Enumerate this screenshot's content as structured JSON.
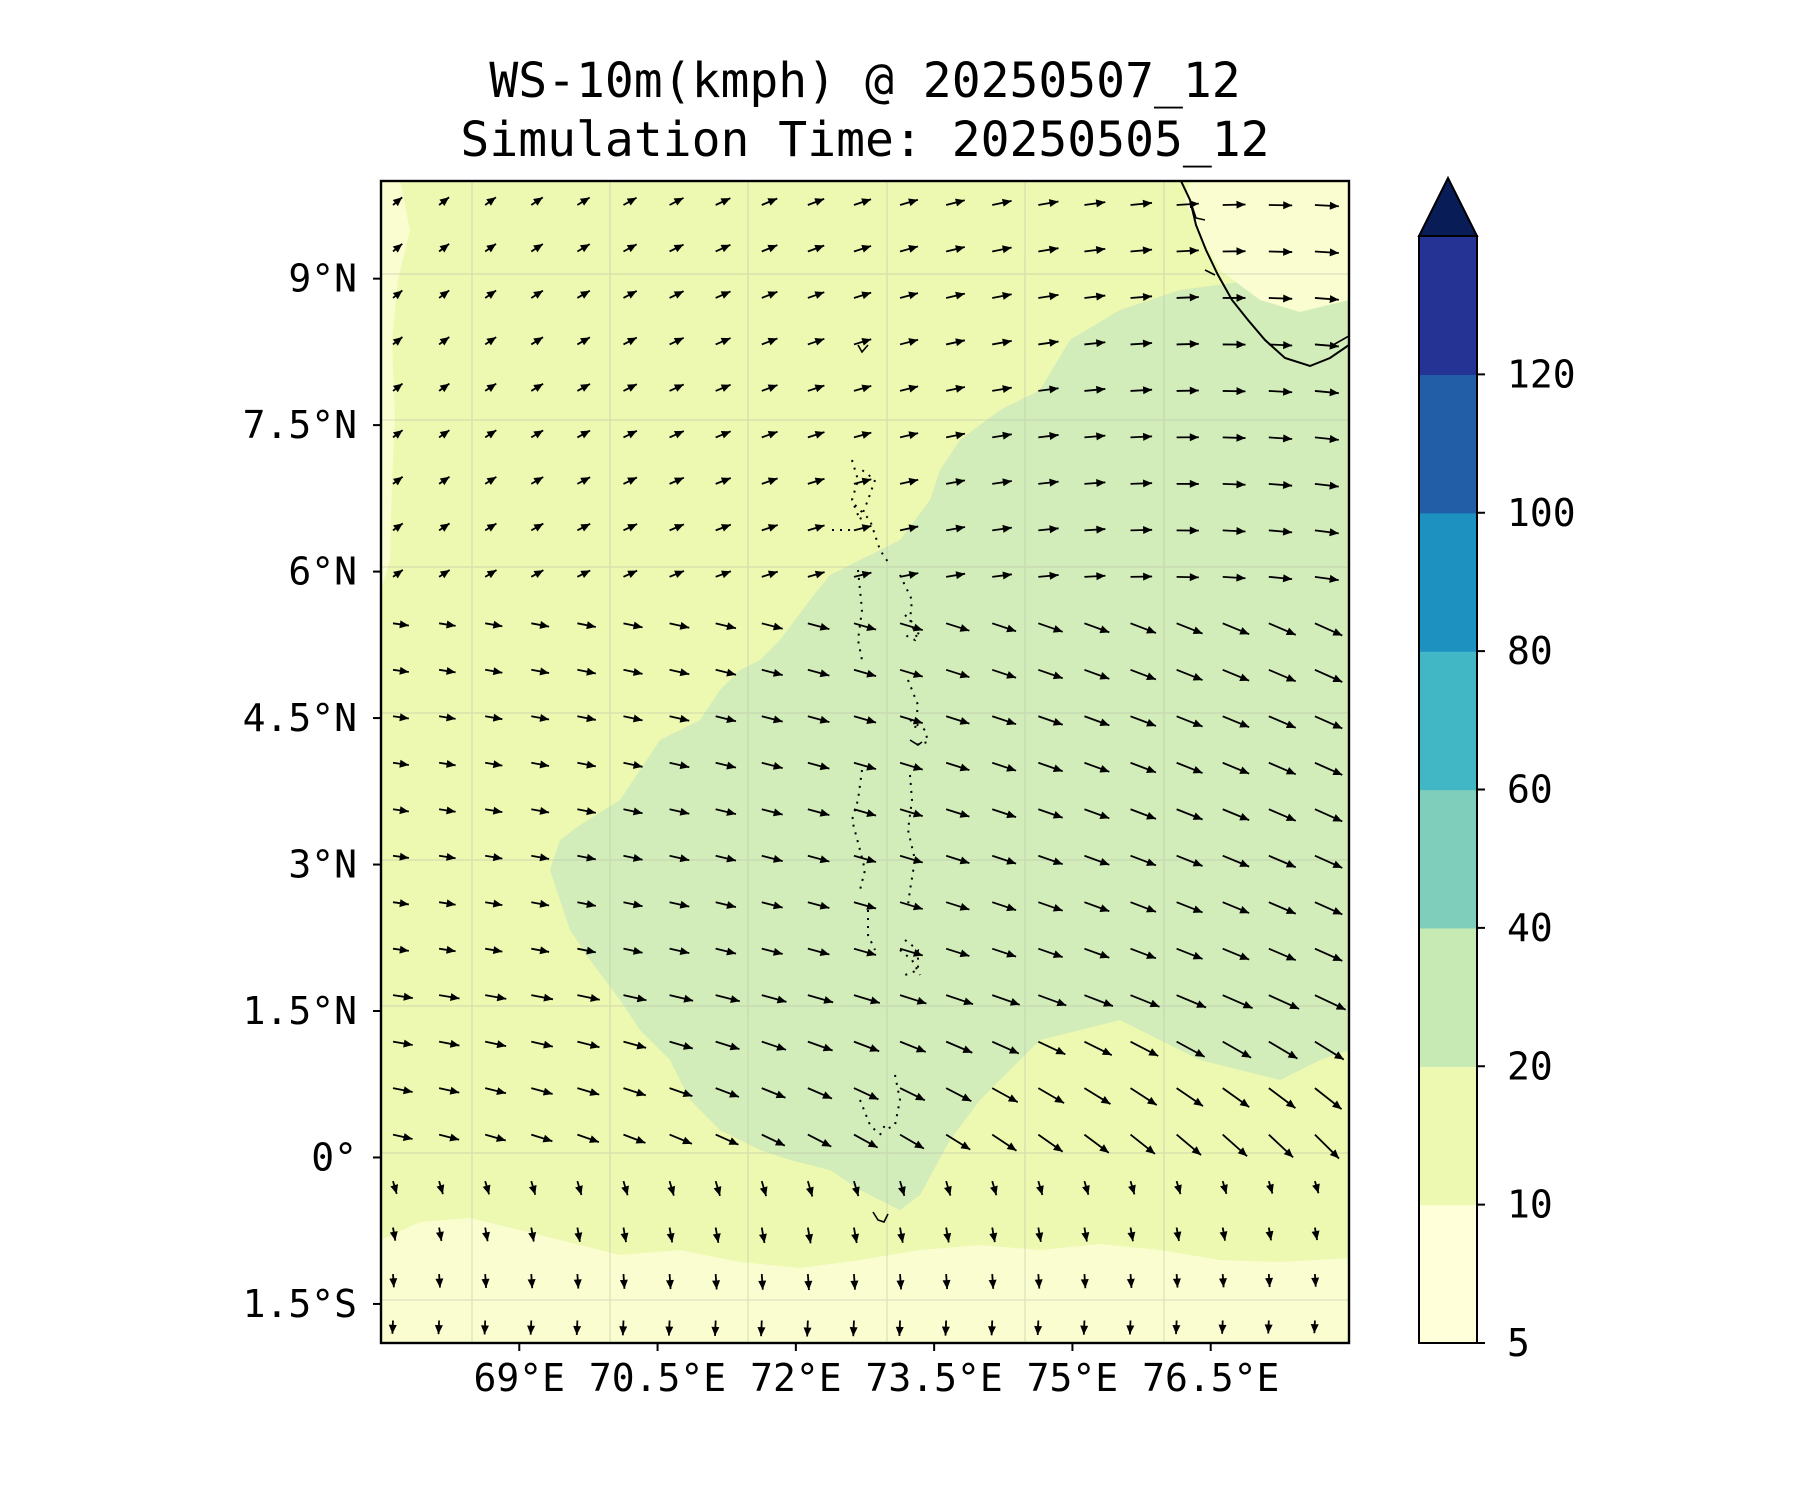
{
  "title": {
    "line1": "WS-10m(kmph) @ 20250507_12",
    "line2": "Simulation Time: 20250505_12"
  },
  "map": {
    "lon_range": [
      67.5,
      78.0
    ],
    "lat_range": [
      -1.9,
      10.0
    ],
    "x_ticks": [
      {
        "value": 69.0,
        "label": "69°E"
      },
      {
        "value": 70.5,
        "label": "70.5°E"
      },
      {
        "value": 72.0,
        "label": "72°E"
      },
      {
        "value": 73.5,
        "label": "73.5°E"
      },
      {
        "value": 75.0,
        "label": "75°E"
      },
      {
        "value": 76.5,
        "label": "76.5°E"
      }
    ],
    "y_ticks": [
      {
        "value": 9.0,
        "label": "9°N"
      },
      {
        "value": 7.5,
        "label": "7.5°N"
      },
      {
        "value": 6.0,
        "label": "6°N"
      },
      {
        "value": 4.5,
        "label": "4.5°N"
      },
      {
        "value": 3.0,
        "label": "3°N"
      },
      {
        "value": 1.5,
        "label": "1.5°N"
      },
      {
        "value": 0.0,
        "label": "0°"
      },
      {
        "value": -1.5,
        "label": "1.5°S"
      }
    ],
    "gridlines": true
  },
  "colorbar": {
    "levels": [
      5,
      10,
      20,
      40,
      60,
      80,
      100,
      120
    ],
    "labels": [
      "5",
      "10",
      "20",
      "40",
      "60",
      "80",
      "100",
      "120"
    ],
    "colors": [
      "#ffffd9",
      "#edf8b1",
      "#c7e9b4",
      "#7fcdbb",
      "#41b6c4",
      "#1d91c0",
      "#225ea8",
      "#253494"
    ],
    "extend_color": "#081d58",
    "extend": "max"
  }
}
